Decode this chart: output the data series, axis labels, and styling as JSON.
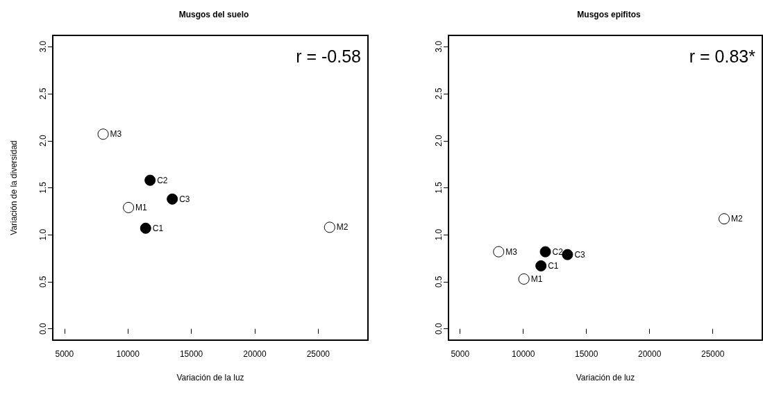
{
  "chart_data": [
    {
      "type": "scatter",
      "title": "Musgos del suelo",
      "xlabel": "Variación de la luz",
      "ylabel": "Variación de la diversidad",
      "annotations": [
        "r = -0.58"
      ],
      "xlim": [
        4080,
        28920
      ],
      "xticks": [
        5000,
        10000,
        15000,
        20000,
        25000
      ],
      "ylim": [
        -0.12,
        3.12
      ],
      "yticks": [
        {
          "value": 0,
          "label": "0.0"
        },
        0.5,
        {
          "value": 1,
          "label": "1.0"
        },
        1.5,
        {
          "value": 2,
          "label": "2.0"
        },
        2.5,
        {
          "value": 3,
          "label": "3.0"
        }
      ],
      "grid": false,
      "marker": "circle",
      "series": [
        {
          "color": "#000000",
          "x": [
            11400,
            11750,
            13500
          ],
          "values": [
            1.07,
            1.58,
            1.38
          ],
          "value_labels": [
            "C1",
            "C2",
            "C3"
          ]
        },
        {
          "color": "#ffffff",
          "x": [
            10050,
            25900,
            8050
          ],
          "values": [
            1.29,
            1.08,
            2.07
          ],
          "value_labels": [
            "M1",
            "M2",
            "M3"
          ]
        }
      ]
    },
    {
      "type": "scatter",
      "title": "Musgos epifitos",
      "xlabel": "Variación de luz",
      "annotations": [
        "r = 0.83*"
      ],
      "xlim": [
        4080,
        28920
      ],
      "xticks": [
        5000,
        10000,
        15000,
        20000,
        25000
      ],
      "ylim": [
        -0.12,
        3.12
      ],
      "yticks": [
        {
          "value": 0,
          "label": "0.0"
        },
        0.5,
        {
          "value": 1,
          "label": "1.0"
        },
        1.5,
        {
          "value": 2,
          "label": "2.0"
        },
        2.5,
        {
          "value": 3,
          "label": "3.0"
        }
      ],
      "grid": false,
      "marker": "circle",
      "series": [
        {
          "color": "#000000",
          "x": [
            11400,
            11750,
            13500
          ],
          "values": [
            0.67,
            0.82,
            0.79
          ],
          "value_labels": [
            "C1",
            "C2",
            "C3"
          ]
        },
        {
          "color": "#ffffff",
          "x": [
            10050,
            25900,
            8050
          ],
          "values": [
            0.53,
            1.17,
            0.82
          ],
          "value_labels": [
            "M1",
            "M2",
            "M3"
          ]
        }
      ]
    }
  ]
}
